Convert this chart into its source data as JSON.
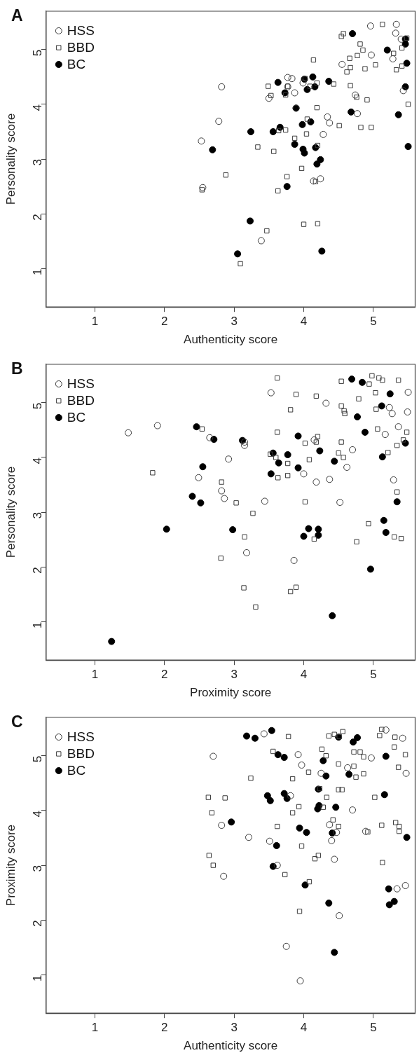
{
  "chart_data": [
    {
      "type": "scatter",
      "title": "A",
      "xlabel": "Authenticity score",
      "ylabel": "Personality score",
      "xlim": [
        0.3,
        5.6
      ],
      "ylim": [
        0.3,
        5.7
      ],
      "xticks": [
        1,
        2,
        3,
        4,
        5
      ],
      "yticks": [
        1,
        2,
        3,
        4,
        5
      ],
      "grid": false,
      "legend": "top left",
      "series": [
        {
          "name": "HSS",
          "color": "#3c3c3c",
          "marker": "circle",
          "x": [
            4.96,
            5.33,
            5.32,
            5.4,
            4.97,
            5.28,
            4.55,
            2.82,
            3.77,
            3.83,
            3.99,
            3.77,
            3.87,
            3.5,
            5.43,
            4.74,
            3.89,
            2.78,
            4.34,
            4.37,
            4.77,
            4.28,
            2.53,
            2.55,
            3.39,
            4.14,
            4.24
          ],
          "values": [
            5.43,
            5.46,
            5.3,
            5.19,
            4.9,
            4.83,
            4.73,
            4.32,
            4.49,
            4.47,
            4.39,
            4.32,
            4.21,
            4.11,
            4.25,
            4.17,
            3.93,
            3.69,
            3.77,
            3.66,
            3.83,
            3.45,
            3.33,
            2.48,
            1.51,
            2.6,
            2.64
          ]
        },
        {
          "name": "BBD",
          "color": "#3c3c3c",
          "marker": "square",
          "x": [
            5.13,
            4.54,
            4.57,
            5.48,
            5.41,
            5.29,
            4.81,
            4.85,
            4.77,
            4.66,
            4.14,
            5.03,
            4.88,
            5.33,
            5.41,
            4.67,
            4.62,
            3.49,
            3.77,
            3.53,
            3.74,
            4.02,
            4.09,
            4.19,
            4.43,
            4.67,
            4.76,
            4.91,
            5.5,
            4.19,
            4.05,
            4.51,
            4.82,
            4.97,
            3.74,
            3.64,
            4.04,
            3.87,
            3.34,
            3.57,
            4.2,
            3.97,
            2.88,
            3.76,
            2.54,
            3.63,
            4.17,
            3.47,
            4.0,
            4.2,
            3.09
          ],
          "values": [
            5.46,
            5.24,
            5.29,
            5.21,
            5.03,
            4.93,
            5.1,
            4.99,
            4.89,
            4.84,
            4.81,
            4.72,
            4.65,
            4.63,
            4.7,
            4.67,
            4.59,
            4.33,
            4.33,
            4.16,
            4.17,
            4.47,
            4.33,
            4.39,
            4.37,
            4.34,
            4.13,
            4.08,
            4.0,
            3.94,
            3.73,
            3.61,
            3.58,
            3.58,
            3.53,
            3.52,
            3.46,
            3.38,
            3.22,
            3.14,
            3.25,
            2.83,
            2.71,
            2.68,
            2.44,
            2.42,
            2.59,
            1.69,
            1.81,
            1.82,
            1.09
          ]
        },
        {
          "name": "BC",
          "color": "#000000",
          "marker": "circle",
          "x": [
            4.7,
            5.2,
            5.46,
            5.46,
            5.48,
            5.46,
            5.36,
            5.5,
            3.63,
            3.73,
            4.01,
            4.13,
            4.05,
            4.16,
            4.36,
            3.89,
            4.68,
            3.98,
            4.1,
            3.66,
            3.56,
            3.24,
            2.69,
            3.87,
            3.99,
            4.17,
            4.01,
            4.24,
            4.19,
            3.76,
            3.23,
            3.05,
            4.26
          ],
          "values": [
            5.29,
            4.99,
            5.19,
            5.1,
            4.75,
            4.32,
            3.81,
            3.23,
            4.4,
            4.21,
            4.46,
            4.5,
            4.27,
            4.32,
            4.42,
            3.93,
            3.86,
            3.63,
            3.68,
            3.58,
            3.5,
            3.5,
            3.17,
            3.27,
            3.18,
            3.21,
            3.11,
            2.99,
            2.91,
            2.5,
            1.87,
            1.27,
            1.32
          ]
        }
      ]
    },
    {
      "type": "scatter",
      "title": "B",
      "xlabel": "Proximity score",
      "ylabel": "Personality score",
      "xlim": [
        0.3,
        5.6
      ],
      "ylim": [
        0.3,
        5.7
      ],
      "xticks": [
        1,
        2,
        3,
        4,
        5
      ],
      "yticks": [
        1,
        2,
        3,
        4,
        5
      ],
      "grid": false,
      "legend": "top left",
      "series": [
        {
          "name": "HSS",
          "color": "#3c3c3c",
          "marker": "circle",
          "x": [
            1.48,
            1.9,
            2.65,
            3.15,
            3.15,
            2.92,
            2.49,
            2.82,
            2.86,
            3.53,
            4.32,
            5.5,
            5.49,
            5.23,
            5.27,
            5.36,
            5.17,
            4.15,
            4.7,
            4.62,
            4.0,
            4.18,
            4.37,
            5.29,
            3.44,
            4.52,
            3.18,
            3.86
          ],
          "values": [
            4.45,
            4.58,
            4.36,
            4.28,
            4.22,
            3.97,
            3.63,
            3.39,
            3.25,
            5.18,
            4.99,
            5.19,
            4.83,
            4.91,
            4.8,
            4.56,
            4.42,
            4.32,
            4.14,
            3.82,
            3.7,
            3.55,
            3.6,
            3.59,
            3.2,
            3.18,
            2.26,
            2.12
          ]
        },
        {
          "name": "BBD",
          "color": "#3c3c3c",
          "marker": "square",
          "x": [
            3.62,
            3.89,
            3.81,
            4.18,
            4.54,
            4.54,
            4.58,
            4.59,
            4.79,
            4.94,
            4.98,
            5.08,
            5.13,
            5.36,
            5.03,
            5.04,
            5.06,
            5.48,
            5.43,
            5.34,
            5.21,
            3.62,
            4.2,
            4.02,
            4.18,
            4.54,
            4.5,
            4.57,
            3.52,
            3.6,
            3.77,
            4.08,
            3.63,
            3.77,
            2.54,
            1.83,
            2.82,
            3.03,
            4.02,
            5.34,
            3.27,
            3.15,
            2.81,
            4.15,
            4.93,
            4.76,
            5.3,
            5.4,
            3.14,
            3.81,
            3.89,
            3.31
          ],
          "values": [
            5.45,
            5.15,
            4.87,
            5.12,
            5.39,
            4.94,
            4.85,
            4.8,
            5.07,
            5.34,
            5.49,
            5.45,
            5.41,
            5.41,
            5.18,
            4.88,
            4.52,
            4.46,
            4.32,
            4.22,
            4.09,
            4.46,
            4.38,
            4.26,
            4.28,
            4.28,
            4.08,
            4.0,
            4.06,
            4.0,
            3.89,
            3.96,
            3.63,
            3.67,
            4.52,
            3.72,
            3.55,
            3.17,
            3.19,
            3.37,
            2.98,
            2.55,
            2.16,
            2.51,
            2.79,
            2.46,
            2.55,
            2.52,
            1.62,
            1.55,
            1.63,
            1.27
          ]
        },
        {
          "name": "BC",
          "color": "#000000",
          "marker": "circle",
          "x": [
            2.46,
            2.71,
            3.12,
            2.55,
            3.56,
            3.64,
            3.77,
            3.53,
            3.92,
            4.23,
            3.92,
            4.44,
            4.69,
            4.84,
            4.77,
            5.12,
            5.24,
            4.88,
            5.13,
            5.46,
            2.4,
            2.52,
            5.34,
            2.03,
            2.98,
            4.0,
            4.07,
            4.21,
            4.21,
            5.15,
            5.18,
            4.96,
            4.41,
            1.24
          ],
          "values": [
            4.56,
            4.33,
            4.31,
            3.83,
            4.08,
            3.9,
            4.05,
            3.7,
            4.39,
            4.12,
            3.81,
            3.93,
            5.43,
            5.37,
            4.74,
            4.94,
            5.16,
            4.46,
            4.01,
            4.26,
            3.29,
            3.17,
            3.19,
            2.69,
            2.68,
            2.56,
            2.7,
            2.69,
            2.58,
            2.85,
            2.63,
            1.96,
            1.11,
            0.64
          ]
        }
      ]
    },
    {
      "type": "scatter",
      "title": "C",
      "xlabel": "Authenticity score",
      "ylabel": "Proximity score",
      "xlim": [
        0.3,
        5.6
      ],
      "ylim": [
        0.3,
        5.7
      ],
      "xticks": [
        1,
        2,
        3,
        4,
        5
      ],
      "yticks": [
        1,
        2,
        3,
        4,
        5
      ],
      "grid": false,
      "legend": "top left",
      "series": [
        {
          "name": "HSS",
          "color": "#3c3c3c",
          "marker": "circle",
          "x": [
            2.7,
            3.43,
            3.92,
            3.97,
            4.25,
            4.63,
            4.97,
            5.18,
            5.42,
            5.47,
            3.81,
            4.7,
            2.82,
            4.37,
            4.47,
            4.89,
            3.21,
            3.51,
            4.4,
            3.62,
            2.85,
            4.44,
            5.34,
            5.46,
            4.51,
            3.75,
            3.95
          ],
          "values": [
            4.99,
            5.4,
            5.02,
            4.83,
            4.68,
            4.78,
            4.96,
            5.47,
            5.32,
            4.68,
            4.27,
            4.01,
            3.73,
            3.74,
            3.6,
            3.62,
            3.51,
            3.44,
            3.45,
            3.0,
            2.8,
            3.11,
            2.57,
            2.63,
            2.08,
            1.52,
            0.89
          ]
        },
        {
          "name": "BBD",
          "color": "#3c3c3c",
          "marker": "square",
          "x": [
            3.78,
            3.56,
            4.26,
            4.32,
            4.36,
            4.44,
            4.56,
            4.51,
            4.72,
            4.81,
            4.86,
            4.5,
            4.72,
            4.75,
            4.86,
            5.09,
            5.12,
            5.31,
            5.3,
            5.46,
            5.36,
            4.07,
            3.84,
            3.24,
            4.23,
            4.5,
            4.55,
            4.33,
            5.02,
            2.63,
            2.87,
            2.68,
            3.93,
            3.84,
            4.28,
            4.42,
            4.5,
            5.12,
            5.32,
            5.37,
            5.37,
            4.92,
            3.62,
            3.97,
            2.64,
            2.7,
            3.73,
            4.08,
            4.16,
            4.21,
            5.13,
            3.94
          ],
          "values": [
            5.35,
            5.08,
            5.12,
            5.0,
            5.36,
            5.39,
            5.44,
            5.35,
            5.07,
            5.07,
            4.98,
            4.85,
            4.81,
            4.61,
            4.67,
            5.37,
            5.48,
            5.34,
            5.16,
            5.02,
            4.79,
            4.7,
            4.58,
            4.59,
            4.4,
            4.38,
            4.38,
            4.24,
            4.24,
            4.24,
            4.23,
            3.96,
            4.07,
            3.96,
            4.06,
            3.83,
            3.71,
            3.73,
            3.78,
            3.71,
            3.62,
            3.61,
            3.71,
            3.35,
            3.18,
            3.0,
            2.83,
            2.7,
            3.12,
            3.18,
            3.05,
            2.16
          ]
        },
        {
          "name": "BC",
          "color": "#000000",
          "marker": "circle",
          "x": [
            3.18,
            3.3,
            3.54,
            3.63,
            3.72,
            4.28,
            4.32,
            4.5,
            4.71,
            4.77,
            4.65,
            5.18,
            5.16,
            3.48,
            3.52,
            3.72,
            3.76,
            4.21,
            4.22,
            4.2,
            4.46,
            2.96,
            3.94,
            4.04,
            4.41,
            5.48,
            3.61,
            3.56,
            4.02,
            4.36,
            5.22,
            5.23,
            5.3,
            4.44
          ],
          "values": [
            5.36,
            5.32,
            5.46,
            5.02,
            4.97,
            4.91,
            4.63,
            5.34,
            5.25,
            5.33,
            4.66,
            4.99,
            4.29,
            4.27,
            4.18,
            4.31,
            4.22,
            4.39,
            4.09,
            4.03,
            4.06,
            3.79,
            3.68,
            3.6,
            3.59,
            3.51,
            3.36,
            2.98,
            2.64,
            2.31,
            2.57,
            2.28,
            2.34,
            1.41
          ]
        }
      ]
    }
  ]
}
